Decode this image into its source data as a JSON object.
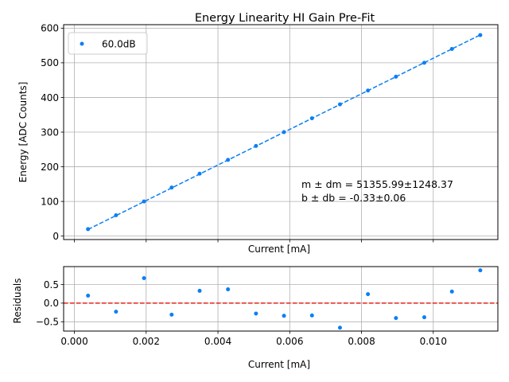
{
  "chart_data": [
    {
      "type": "scatter",
      "title": "Energy Linearity HI Gain Pre-Fit",
      "xlabel": "Current [mA]",
      "ylabel": "Energy [ADC Counts]",
      "xlim": [
        -0.0003,
        0.0118
      ],
      "ylim": [
        -10,
        610
      ],
      "yticks": [
        "0",
        "100",
        "200",
        "300",
        "400",
        "500",
        "600"
      ],
      "xticks": [
        0,
        0.002,
        0.004,
        0.006,
        0.008,
        0.01
      ],
      "grid": true,
      "legend": {
        "position": "upper-left",
        "entries": [
          "60.0dB"
        ]
      },
      "series": [
        {
          "name": "60.0dB",
          "color": "#0a7ff5",
          "x": [
            0.00038,
            0.00116,
            0.00194,
            0.00271,
            0.00349,
            0.00428,
            0.00506,
            0.00584,
            0.00662,
            0.0074,
            0.00818,
            0.00896,
            0.00975,
            0.01052,
            0.01131
          ],
          "y": [
            20,
            60,
            100,
            140,
            180,
            220,
            260,
            300,
            340,
            380,
            420,
            460,
            500,
            540,
            580
          ]
        }
      ],
      "fit_line": {
        "style": "dashed",
        "color": "#0a7ff5",
        "x": [
          0.00038,
          0.01131
        ],
        "y": [
          19.2,
          580.5
        ]
      },
      "annotation": {
        "line1": "m ± dm = 51355.99±1248.37",
        "line2": "b ± db = -0.33±0.06"
      }
    },
    {
      "type": "scatter",
      "xlabel": "Current [mA]",
      "ylabel": "Residuals",
      "xlim": [
        -0.0003,
        0.0118
      ],
      "ylim": [
        -0.75,
        0.98
      ],
      "yticks": [
        "0.5",
        "0.0",
        "−0.5"
      ],
      "yticks_values": [
        0.5,
        0.0,
        -0.5
      ],
      "xticks": [
        "0.000",
        "0.002",
        "0.004",
        "0.006",
        "0.008",
        "0.010"
      ],
      "xticks_values": [
        0,
        0.002,
        0.004,
        0.006,
        0.008,
        0.01
      ],
      "grid": true,
      "reference_line": {
        "y": 0,
        "style": "dashed",
        "color": "#e8251c"
      },
      "series": [
        {
          "color": "#0a7ff5",
          "x": [
            0.00038,
            0.00116,
            0.00194,
            0.00271,
            0.00349,
            0.00428,
            0.00506,
            0.00584,
            0.00662,
            0.0074,
            0.00818,
            0.00896,
            0.00975,
            0.01052,
            0.01131
          ],
          "y": [
            0.2,
            -0.23,
            0.67,
            -0.31,
            0.33,
            0.37,
            -0.28,
            -0.34,
            -0.33,
            -0.66,
            0.24,
            -0.4,
            -0.38,
            0.31,
            0.88
          ]
        }
      ]
    }
  ]
}
